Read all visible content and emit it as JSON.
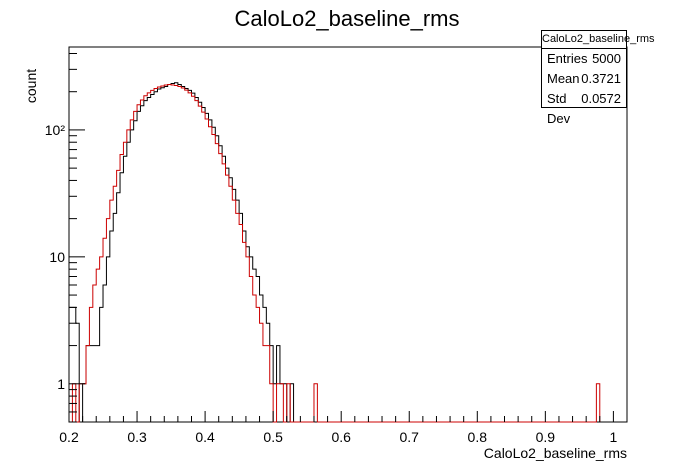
{
  "chart_data": {
    "type": "histogram",
    "title": "CaloLo2_baseline_rms",
    "xlabel": "CaloLo2_baseline_rms",
    "ylabel": "count",
    "xlim": [
      0.2,
      1.02
    ],
    "ylim": [
      0.5,
      450
    ],
    "yscale": "log",
    "x_ticks": [
      0.2,
      0.3,
      0.4,
      0.5,
      0.6,
      0.7,
      0.8,
      0.9,
      1.0
    ],
    "x_tick_labels": [
      "0.2",
      "0.3",
      "0.4",
      "0.5",
      "0.6",
      "0.7",
      "0.8",
      "0.9",
      "1"
    ],
    "y_ticks": [
      1,
      10,
      100
    ],
    "y_tick_labels": [
      "1",
      "10",
      "10²"
    ],
    "bin_width": 0.005,
    "series": [
      {
        "color": "#000000",
        "x_start": 0.2,
        "values": [
          4,
          4,
          3,
          0,
          1,
          2,
          2,
          2,
          2,
          4,
          6,
          10,
          16,
          22,
          32,
          46,
          62,
          80,
          100,
          118,
          140,
          155,
          170,
          180,
          190,
          200,
          210,
          215,
          220,
          228,
          232,
          235,
          228,
          220,
          212,
          205,
          195,
          180,
          165,
          150,
          135,
          120,
          105,
          90,
          75,
          62,
          50,
          42,
          34,
          28,
          22,
          16,
          12,
          10,
          8,
          7,
          5,
          4,
          3,
          2,
          1,
          2,
          1,
          1,
          0,
          1
        ]
      },
      {
        "color": "#cc0000",
        "x_start": 0.205,
        "values": [
          1,
          0,
          1,
          1,
          2,
          4,
          6,
          8,
          10,
          14,
          20,
          28,
          36,
          48,
          64,
          80,
          100,
          120,
          140,
          158,
          172,
          186,
          196,
          205,
          212,
          218,
          222,
          226,
          228,
          226,
          224,
          220,
          214,
          206,
          196,
          184,
          170,
          154,
          138,
          122,
          106,
          92,
          78,
          65,
          54,
          44,
          36,
          28,
          22,
          18,
          13,
          10,
          7,
          5,
          4,
          3,
          2,
          2,
          1,
          0,
          1,
          1,
          0,
          1,
          0,
          0,
          0,
          0,
          0,
          0,
          0,
          1,
          0,
          0,
          0,
          0,
          0,
          0,
          0,
          0,
          0,
          0,
          0,
          0,
          0,
          0,
          0,
          0,
          0,
          0,
          0,
          0,
          0,
          0,
          0,
          0,
          0,
          0,
          0,
          0,
          0,
          0,
          0,
          0,
          0,
          0,
          0,
          0,
          0,
          0,
          0,
          0,
          0,
          0,
          0,
          0,
          0,
          0,
          0,
          0,
          0,
          0,
          0,
          0,
          0,
          0,
          0,
          0,
          0,
          0,
          0,
          0,
          0,
          0,
          0,
          0,
          0,
          0,
          0,
          0,
          0,
          0,
          0,
          0,
          0,
          0,
          0,
          0,
          0,
          0,
          0,
          0,
          0,
          0,
          1
        ]
      }
    ],
    "legend": "none",
    "grid": false
  },
  "stats": {
    "title": "CaloLo2_baseline_rms",
    "rows": [
      {
        "label": "Entries",
        "value": "5000"
      },
      {
        "label": "Mean",
        "value": "0.3721"
      },
      {
        "label": "Std Dev",
        "value": "0.0572"
      }
    ]
  }
}
